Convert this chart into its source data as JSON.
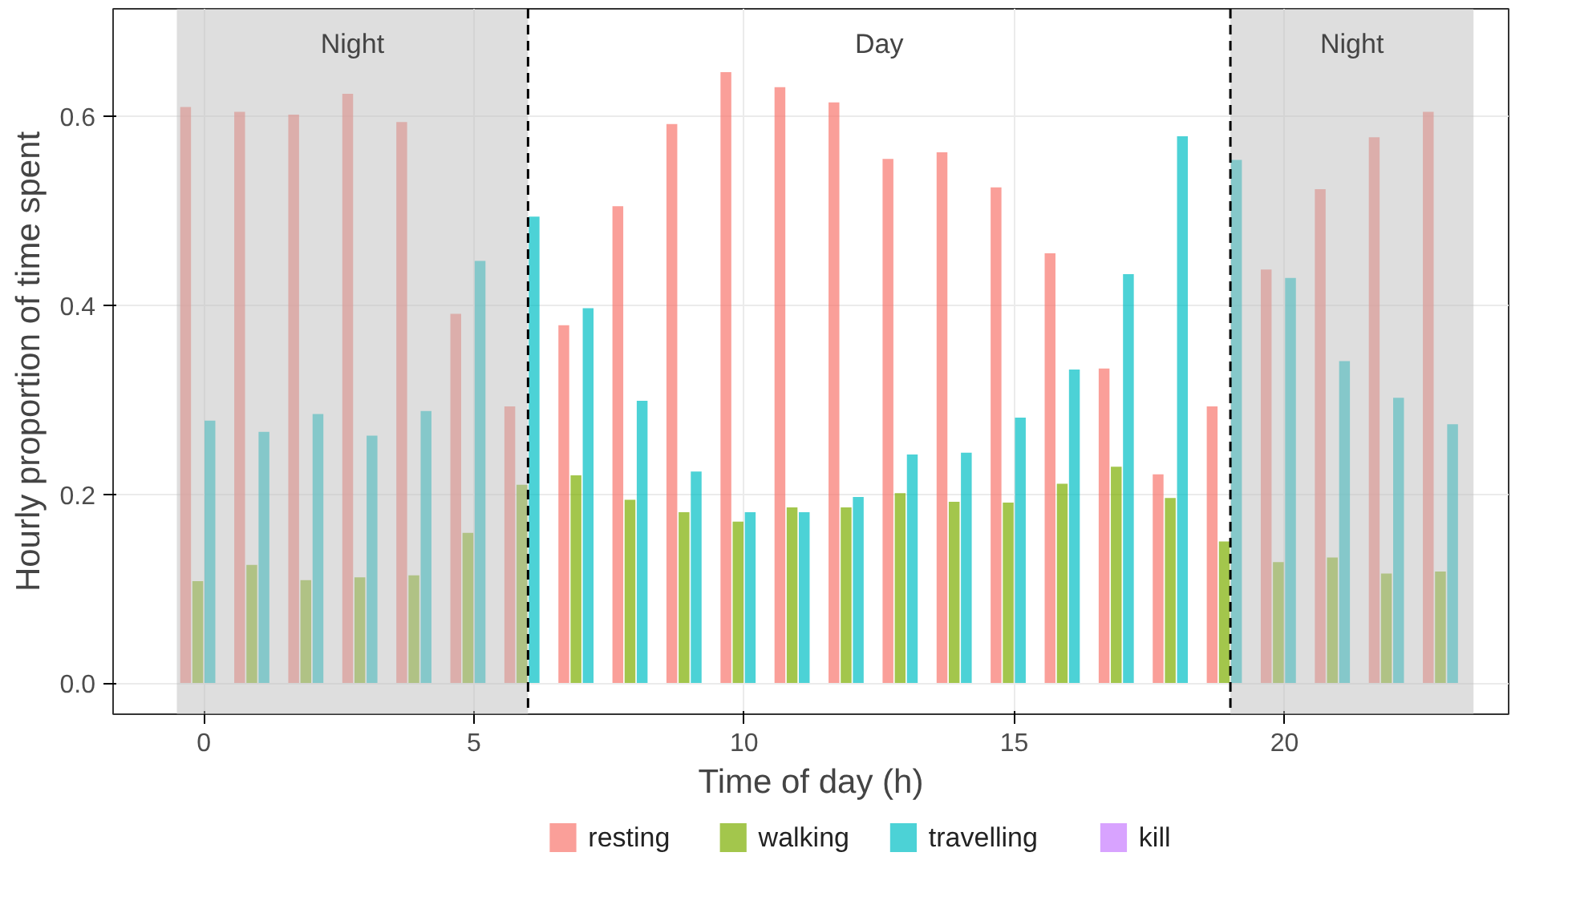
{
  "chart_data": {
    "type": "bar",
    "xlabel": "Time of day (h)",
    "ylabel": "Hourly proportion of time spent",
    "x": [
      0,
      1,
      2,
      3,
      4,
      5,
      6,
      7,
      8,
      9,
      10,
      11,
      12,
      13,
      14,
      15,
      16,
      17,
      18,
      19,
      20,
      21,
      22,
      23
    ],
    "series": [
      {
        "name": "resting",
        "color": "#f8766d",
        "values": [
          0.61,
          0.605,
          0.602,
          0.624,
          0.594,
          0.391,
          0.293,
          0.379,
          0.505,
          0.592,
          0.647,
          0.631,
          0.615,
          0.555,
          0.562,
          0.525,
          0.455,
          0.333,
          0.221,
          0.293,
          0.438,
          0.523,
          0.578,
          0.605
        ]
      },
      {
        "name": "walking",
        "color": "#7cae00",
        "values": [
          0.108,
          0.125,
          0.109,
          0.112,
          0.114,
          0.159,
          0.21,
          0.22,
          0.194,
          0.181,
          0.171,
          0.186,
          0.186,
          0.201,
          0.192,
          0.191,
          0.211,
          0.229,
          0.196,
          0.15,
          0.128,
          0.133,
          0.116,
          0.118
        ]
      },
      {
        "name": "travelling",
        "color": "#00bfc4",
        "values": [
          0.278,
          0.266,
          0.285,
          0.262,
          0.288,
          0.447,
          0.494,
          0.397,
          0.299,
          0.224,
          0.181,
          0.181,
          0.197,
          0.242,
          0.244,
          0.281,
          0.332,
          0.433,
          0.579,
          0.554,
          0.429,
          0.341,
          0.302,
          0.274
        ]
      },
      {
        "name": "kill",
        "color": "#c77cff",
        "values": [
          0,
          0,
          0,
          0,
          0,
          0,
          0,
          0,
          0,
          0,
          0,
          0,
          0,
          0,
          0,
          0,
          0,
          0,
          0,
          0,
          0,
          0,
          0,
          0
        ]
      }
    ],
    "xlim": [
      -1.68,
      24.15
    ],
    "ylim": [
      -0.033,
      0.714
    ],
    "xticks": [
      0,
      5,
      10,
      15,
      20
    ],
    "yticks": [
      {
        "value": 0,
        "label": "0.0"
      },
      {
        "value": 0.2,
        "label": "0.2"
      },
      {
        "value": 0.4,
        "label": "0.4"
      },
      {
        "value": 0.6,
        "label": "0.6"
      }
    ],
    "bands": [
      {
        "axis": "x",
        "from": -0.5,
        "to": 6,
        "label": "Night",
        "color": "#bebebe"
      },
      {
        "axis": "x",
        "from": 19,
        "to": 23.5,
        "label": "Night",
        "color": "#bebebe"
      }
    ],
    "ref_lines": [
      {
        "axis": "x",
        "value": 6,
        "line_style": "dashed",
        "color": "#000000"
      },
      {
        "axis": "x",
        "value": 19,
        "line_style": "dashed",
        "color": "#000000"
      }
    ],
    "annotations": [
      "Day"
    ],
    "grid": true,
    "legend": "bottom"
  }
}
